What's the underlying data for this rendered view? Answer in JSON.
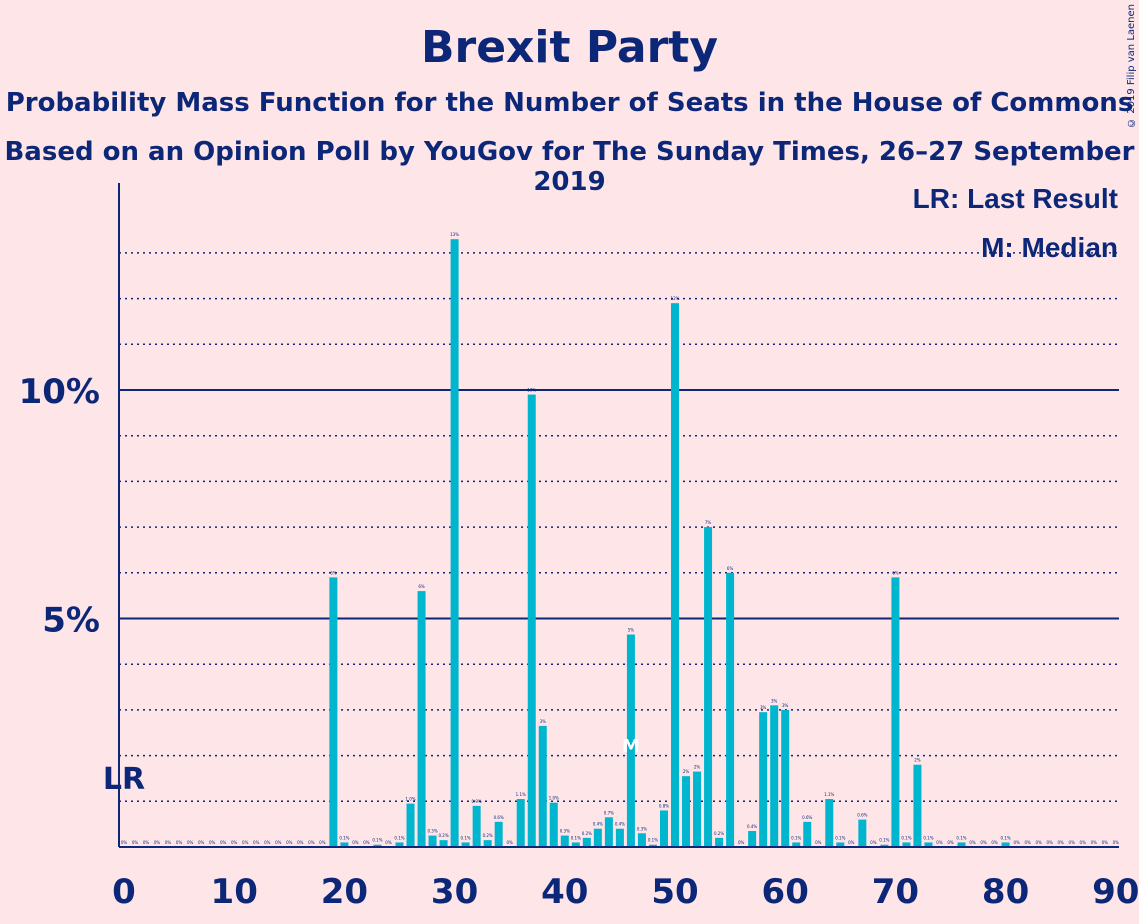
{
  "title": "Brexit Party",
  "subtitle1": "Probability Mass Function for the Number of Seats in the House of Commons",
  "subtitle2": "Based on an Opinion Poll by YouGov for The Sunday Times, 26–27 September 2019",
  "copyright": "© 2019 Filip van Laenen",
  "legend": {
    "lr": "LR: Last Result",
    "median": "M: Median"
  },
  "colors": {
    "bar": "#00B6CF",
    "axis": "#0D2778",
    "background": "#FDE5E8"
  },
  "chart_data": {
    "type": "bar",
    "x_ticks": [
      "0",
      "10",
      "20",
      "30",
      "40",
      "50",
      "60",
      "70",
      "80",
      "90"
    ],
    "y_ticks": [
      "5%",
      "10%"
    ],
    "xlim": [
      0,
      90
    ],
    "ylim": [
      0,
      14.5
    ],
    "grid": "dotted every 1%, solid at 5% and 10%",
    "last_result": {
      "seats": 0,
      "label": "LR"
    },
    "median": {
      "seats": 46,
      "label": "M"
    },
    "seats": [
      0,
      1,
      2,
      3,
      4,
      5,
      6,
      7,
      8,
      9,
      10,
      11,
      12,
      13,
      14,
      15,
      16,
      17,
      18,
      19,
      20,
      21,
      22,
      23,
      24,
      25,
      26,
      27,
      28,
      29,
      30,
      31,
      32,
      33,
      34,
      35,
      36,
      37,
      38,
      39,
      40,
      41,
      42,
      43,
      44,
      45,
      46,
      47,
      48,
      49,
      50,
      51,
      52,
      53,
      54,
      55,
      56,
      57,
      58,
      59,
      60,
      61,
      62,
      63,
      64,
      65,
      66,
      67,
      68,
      69,
      70,
      71,
      72,
      73,
      74,
      75,
      76,
      77,
      78,
      79,
      80,
      81,
      82,
      83,
      84,
      85,
      86,
      87,
      88,
      89,
      90
    ],
    "values": [
      0,
      0,
      0,
      0,
      0,
      0,
      0,
      0,
      0,
      0,
      0,
      0,
      0,
      0,
      0,
      0,
      0,
      0,
      0,
      5.9,
      0.1,
      0,
      0,
      0.05,
      0,
      0.1,
      0.95,
      5.6,
      0.25,
      0.15,
      13.3,
      0.1,
      0.9,
      0.15,
      0.55,
      0,
      1.05,
      9.9,
      2.65,
      0.97,
      0.25,
      0.1,
      0.2,
      0.4,
      0.65,
      0.4,
      4.65,
      0.3,
      0.05,
      0.8,
      11.9,
      1.55,
      1.65,
      7.0,
      0.2,
      6.0,
      0,
      0.35,
      2.95,
      3.1,
      3.0,
      0.1,
      0.55,
      0,
      1.05,
      0.1,
      0,
      0.6,
      0,
      0.05,
      5.9,
      0.1,
      1.8,
      0.1,
      0,
      0,
      0.1,
      0,
      0,
      0,
      0.1,
      0,
      0,
      0,
      0,
      0,
      0,
      0,
      0,
      0,
      0
    ],
    "data_labels": [
      "0%",
      "0%",
      "0%",
      "0%",
      "0%",
      "0%",
      "0%",
      "0%",
      "0%",
      "0%",
      "0%",
      "0%",
      "0%",
      "0%",
      "0%",
      "0%",
      "0%",
      "0%",
      "0%",
      "6%",
      "0.1%",
      "0%",
      "0%",
      "0.1%",
      "0%",
      "0.1%",
      "1.0%",
      "6%",
      "0.3%",
      "0.2%",
      "13%",
      "0.1%",
      "0.9%",
      "0.2%",
      "0.6%",
      "0%",
      "1.1%",
      "10%",
      "3%",
      "1.0%",
      "0.3%",
      "0.1%",
      "0.2%",
      "0.4%",
      "0.7%",
      "0.4%",
      "5%",
      "0.3%",
      "0.1%",
      "0.8%",
      "12%",
      "2%",
      "2%",
      "7%",
      "0.2%",
      "6%",
      "0%",
      "0.4%",
      "3%",
      "3%",
      "3%",
      "0.1%",
      "0.6%",
      "0%",
      "1.1%",
      "0.1%",
      "0%",
      "0.6%",
      "0%",
      "0.1%",
      "6%",
      "0.1%",
      "2%",
      "0.1%",
      "0%",
      "0%",
      "0.1%",
      "0%",
      "0%",
      "0%",
      "0.1%",
      "0%",
      "0%",
      "0%",
      "0%",
      "0%",
      "0%",
      "0%",
      "0%",
      "0%",
      "0%"
    ]
  }
}
